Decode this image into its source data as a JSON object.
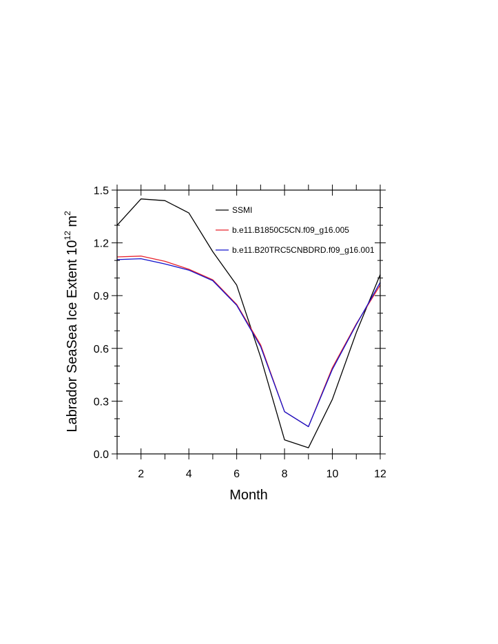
{
  "chart_data": {
    "type": "line",
    "xlabel": "Month",
    "ylabel_parts": [
      "Labrador SeaSea Ice Extent 10",
      "12",
      " m",
      "2"
    ],
    "xlim": [
      1,
      12
    ],
    "ylim": [
      0,
      1.5
    ],
    "x_ticks": [
      2,
      4,
      6,
      8,
      10,
      12
    ],
    "x_tick_labels": [
      "2",
      "4",
      "6",
      "8",
      "10",
      "12"
    ],
    "y_ticks": [
      0,
      0.3,
      0.6,
      0.9,
      1.2,
      1.5
    ],
    "y_tick_labels": [
      "0.0",
      "0.3",
      "0.6",
      "0.9",
      "1.2",
      "1.5"
    ],
    "legend_position": "top-right",
    "x": [
      1,
      2,
      3,
      4,
      5,
      6,
      7,
      8,
      9,
      10,
      11,
      12
    ],
    "series": [
      {
        "name": "SSMI",
        "color": "#000000",
        "values": [
          1.3,
          1.45,
          1.44,
          1.37,
          1.15,
          0.96,
          0.55,
          0.08,
          0.035,
          0.31,
          0.69,
          1.02
        ]
      },
      {
        "name": "b.e11.B1850C5CN.f09_g16.005",
        "color": "#e8202a",
        "values": [
          1.12,
          1.125,
          1.095,
          1.05,
          0.99,
          0.85,
          0.62,
          0.24,
          0.155,
          0.49,
          0.74,
          0.96
        ]
      },
      {
        "name": "b.e11.B20TRC5CNBDRD.f09_g16.001",
        "color": "#1010cc",
        "values": [
          1.105,
          1.11,
          1.08,
          1.045,
          0.985,
          0.845,
          0.61,
          0.24,
          0.155,
          0.48,
          0.735,
          0.975
        ]
      }
    ]
  }
}
